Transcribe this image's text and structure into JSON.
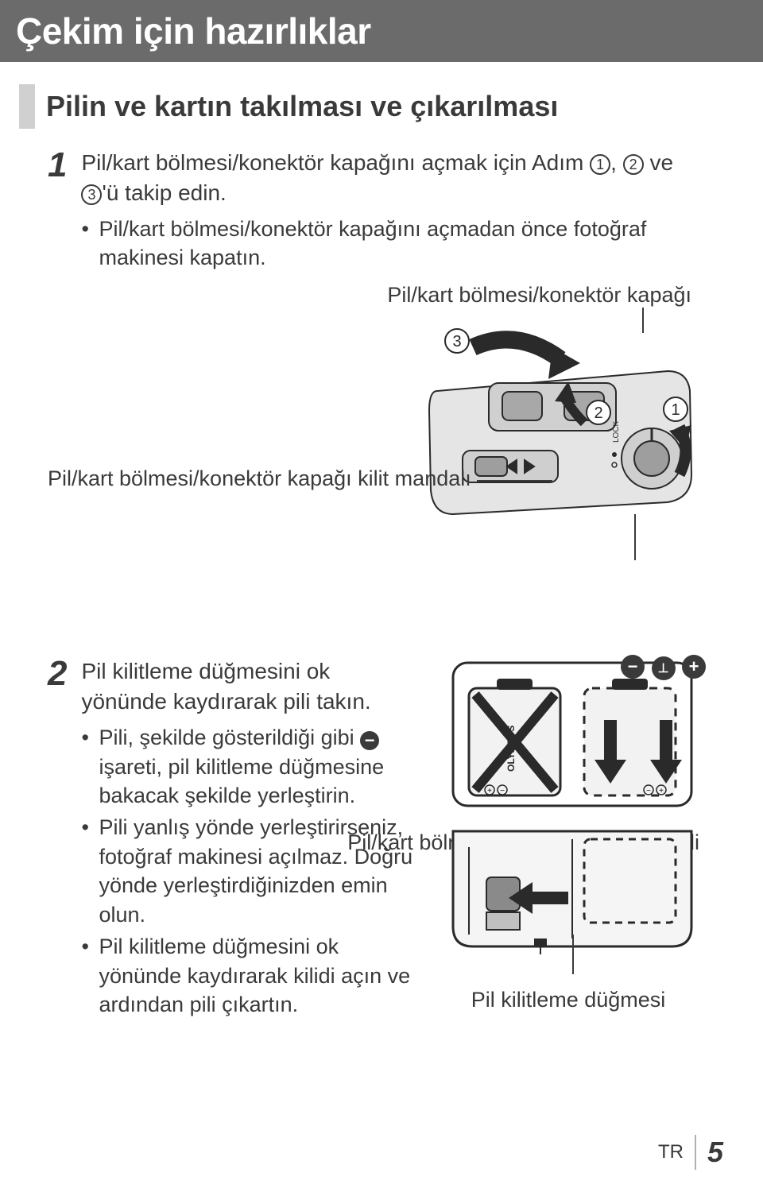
{
  "title": "Çekim için hazırlıklar",
  "subtitle": "Pilin ve kartın takılması ve çıkarılması",
  "steps": {
    "s1": {
      "num": "1",
      "text_a": "Pil/kart bölmesi/konektör kapağını açmak için Adım ",
      "text_b": ", ",
      "text_c": " ve ",
      "text_d": "'ü takip edin.",
      "c1": "1",
      "c2": "2",
      "c3": "3",
      "bullets": [
        "Pil/kart bölmesi/konektör kapağını açmadan önce fotoğraf makinesi kapatın."
      ]
    },
    "s2": {
      "num": "2",
      "text": "Pil kilitleme düğmesini ok yönünde kaydırarak pili takın.",
      "bullets": [
        "Pili, şekilde gösterildiği gibi  işareti, pil kilitleme düğmesine bakacak şekilde yerleştirin.",
        "Pili yanlış yönde yerleştirirseniz, fotoğraf makinesi açılmaz. Doğru yönde yerleştirdiğinizden emin olun.",
        "Pil kilitleme düğmesini ok yönünde kaydırarak kilidi açın ve ardından pili çıkartın."
      ]
    }
  },
  "labels": {
    "cover": "Pil/kart bölmesi/konektör kapağı",
    "lock_latch": "Pil/kart bölmesi/konektör kapağı kilit mandalı",
    "cover_lock": "Pil/kart bölmesi/konektör kapağı kilidi",
    "battery_button": "Pil kilitleme düğmesi"
  },
  "diagram": {
    "markers": {
      "m1": "1",
      "m2": "2",
      "m3": "3"
    },
    "lock_text": "LOCK"
  },
  "polarity": {
    "minus": "−",
    "t": "⊥",
    "plus": "+"
  },
  "minus_icon": "−",
  "footer": {
    "lang": "TR",
    "page": "5"
  },
  "colors": {
    "title_bg": "#6b6b6b",
    "text": "#3a3a3a",
    "tab": "#d0d0d0",
    "divider": "#b0b0b0",
    "diagram_fill": "#e5e5e5",
    "diagram_stroke": "#2a2a2a"
  }
}
